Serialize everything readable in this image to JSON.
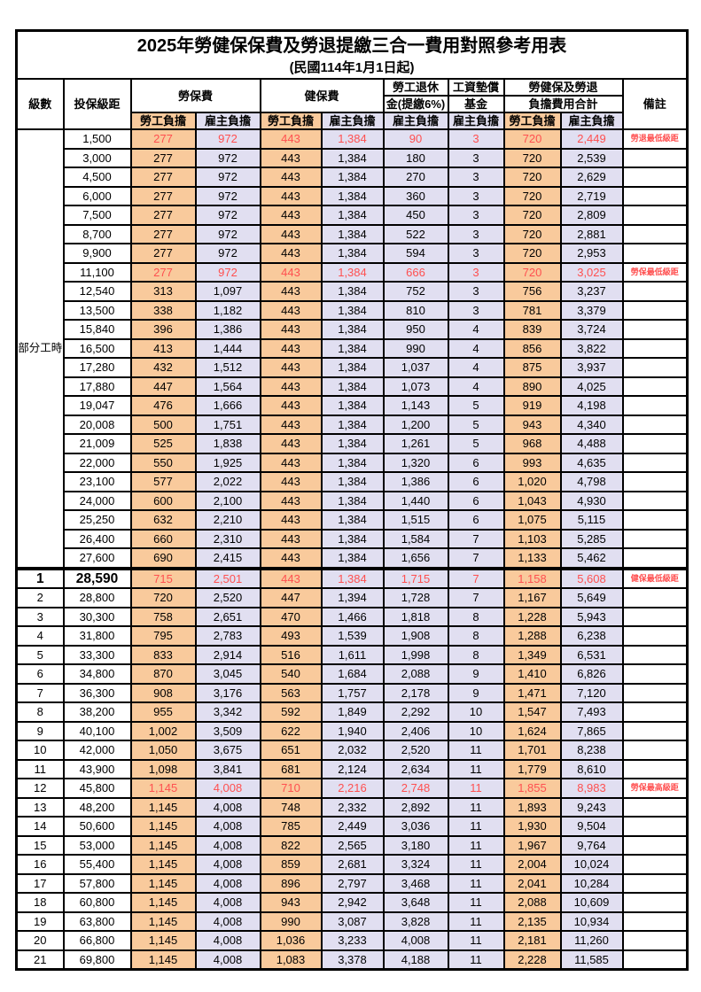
{
  "table": {
    "title": "2025年勞健保保費及勞退提繳三合一費用對照參考用表",
    "subtitle": "(民國114年1月1日起)",
    "header": {
      "level": "級數",
      "bracket": "投保級距",
      "labor": "勞保費",
      "health": "健保費",
      "pension_line1": "勞工退休",
      "pension_line2": "金(提繳6%)",
      "wage_fund_line1": "工資墊償",
      "wage_fund_line2": "基金",
      "total_line1": "勞健保及勞退",
      "total_line2": "負擔費用合計",
      "note": "備註",
      "employee": "勞工負擔",
      "employer": "雇主負擔"
    },
    "value_columns": [
      "勞保費-勞工負擔",
      "勞保費-雇主負擔",
      "健保費-勞工負擔",
      "健保費-雇主負擔",
      "勞工退休金-雇主負擔",
      "工資墊償基金-雇主負擔",
      "合計-勞工負擔",
      "合計-雇主負擔"
    ],
    "part_time_label": "部分工時",
    "colors": {
      "employee_bg": "#F9CA9C",
      "employer_bg": "#E1DFF1",
      "highlight_text": "#FF5050",
      "border": "#000000"
    },
    "rows": [
      {
        "level": "",
        "bracket": "1,500",
        "v": [
          "277",
          "972",
          "443",
          "1,384",
          "90",
          "3",
          "720",
          "2,449"
        ],
        "note": "勞退最低級距",
        "red": true
      },
      {
        "level": "",
        "bracket": "3,000",
        "v": [
          "277",
          "972",
          "443",
          "1,384",
          "180",
          "3",
          "720",
          "2,539"
        ],
        "note": ""
      },
      {
        "level": "",
        "bracket": "4,500",
        "v": [
          "277",
          "972",
          "443",
          "1,384",
          "270",
          "3",
          "720",
          "2,629"
        ],
        "note": ""
      },
      {
        "level": "",
        "bracket": "6,000",
        "v": [
          "277",
          "972",
          "443",
          "1,384",
          "360",
          "3",
          "720",
          "2,719"
        ],
        "note": ""
      },
      {
        "level": "",
        "bracket": "7,500",
        "v": [
          "277",
          "972",
          "443",
          "1,384",
          "450",
          "3",
          "720",
          "2,809"
        ],
        "note": ""
      },
      {
        "level": "",
        "bracket": "8,700",
        "v": [
          "277",
          "972",
          "443",
          "1,384",
          "522",
          "3",
          "720",
          "2,881"
        ],
        "note": ""
      },
      {
        "level": "",
        "bracket": "9,900",
        "v": [
          "277",
          "972",
          "443",
          "1,384",
          "594",
          "3",
          "720",
          "2,953"
        ],
        "note": ""
      },
      {
        "level": "",
        "bracket": "11,100",
        "v": [
          "277",
          "972",
          "443",
          "1,384",
          "666",
          "3",
          "720",
          "3,025"
        ],
        "note": "勞保最低級距",
        "red": true
      },
      {
        "level": "",
        "bracket": "12,540",
        "v": [
          "313",
          "1,097",
          "443",
          "1,384",
          "752",
          "3",
          "756",
          "3,237"
        ],
        "note": ""
      },
      {
        "level": "",
        "bracket": "13,500",
        "v": [
          "338",
          "1,182",
          "443",
          "1,384",
          "810",
          "3",
          "781",
          "3,379"
        ],
        "note": ""
      },
      {
        "level": "",
        "bracket": "15,840",
        "v": [
          "396",
          "1,386",
          "443",
          "1,384",
          "950",
          "4",
          "839",
          "3,724"
        ],
        "note": ""
      },
      {
        "level": "",
        "bracket": "16,500",
        "v": [
          "413",
          "1,444",
          "443",
          "1,384",
          "990",
          "4",
          "856",
          "3,822"
        ],
        "note": ""
      },
      {
        "level": "",
        "bracket": "17,280",
        "v": [
          "432",
          "1,512",
          "443",
          "1,384",
          "1,037",
          "4",
          "875",
          "3,937"
        ],
        "note": ""
      },
      {
        "level": "",
        "bracket": "17,880",
        "v": [
          "447",
          "1,564",
          "443",
          "1,384",
          "1,073",
          "4",
          "890",
          "4,025"
        ],
        "note": ""
      },
      {
        "level": "",
        "bracket": "19,047",
        "v": [
          "476",
          "1,666",
          "443",
          "1,384",
          "1,143",
          "5",
          "919",
          "4,198"
        ],
        "note": ""
      },
      {
        "level": "",
        "bracket": "20,008",
        "v": [
          "500",
          "1,751",
          "443",
          "1,384",
          "1,200",
          "5",
          "943",
          "4,340"
        ],
        "note": ""
      },
      {
        "level": "",
        "bracket": "21,009",
        "v": [
          "525",
          "1,838",
          "443",
          "1,384",
          "1,261",
          "5",
          "968",
          "4,488"
        ],
        "note": ""
      },
      {
        "level": "",
        "bracket": "22,000",
        "v": [
          "550",
          "1,925",
          "443",
          "1,384",
          "1,320",
          "6",
          "993",
          "4,635"
        ],
        "note": ""
      },
      {
        "level": "",
        "bracket": "23,100",
        "v": [
          "577",
          "2,022",
          "443",
          "1,384",
          "1,386",
          "6",
          "1,020",
          "4,798"
        ],
        "note": ""
      },
      {
        "level": "",
        "bracket": "24,000",
        "v": [
          "600",
          "2,100",
          "443",
          "1,384",
          "1,440",
          "6",
          "1,043",
          "4,930"
        ],
        "note": ""
      },
      {
        "level": "",
        "bracket": "25,250",
        "v": [
          "632",
          "2,210",
          "443",
          "1,384",
          "1,515",
          "6",
          "1,075",
          "5,115"
        ],
        "note": ""
      },
      {
        "level": "",
        "bracket": "26,400",
        "v": [
          "660",
          "2,310",
          "443",
          "1,384",
          "1,584",
          "7",
          "1,103",
          "5,285"
        ],
        "note": ""
      },
      {
        "level": "",
        "bracket": "27,600",
        "v": [
          "690",
          "2,415",
          "443",
          "1,384",
          "1,656",
          "7",
          "1,133",
          "5,462"
        ],
        "note": ""
      },
      {
        "level": "1",
        "bracket": "28,590",
        "v": [
          "715",
          "2,501",
          "443",
          "1,384",
          "1,715",
          "7",
          "1,158",
          "5,608"
        ],
        "note": "健保最低級距",
        "red": true,
        "big": true,
        "thick_top": true
      },
      {
        "level": "2",
        "bracket": "28,800",
        "v": [
          "720",
          "2,520",
          "447",
          "1,394",
          "1,728",
          "7",
          "1,167",
          "5,649"
        ],
        "note": ""
      },
      {
        "level": "3",
        "bracket": "30,300",
        "v": [
          "758",
          "2,651",
          "470",
          "1,466",
          "1,818",
          "8",
          "1,228",
          "5,943"
        ],
        "note": ""
      },
      {
        "level": "4",
        "bracket": "31,800",
        "v": [
          "795",
          "2,783",
          "493",
          "1,539",
          "1,908",
          "8",
          "1,288",
          "6,238"
        ],
        "note": ""
      },
      {
        "level": "5",
        "bracket": "33,300",
        "v": [
          "833",
          "2,914",
          "516",
          "1,611",
          "1,998",
          "8",
          "1,349",
          "6,531"
        ],
        "note": ""
      },
      {
        "level": "6",
        "bracket": "34,800",
        "v": [
          "870",
          "3,045",
          "540",
          "1,684",
          "2,088",
          "9",
          "1,410",
          "6,826"
        ],
        "note": ""
      },
      {
        "level": "7",
        "bracket": "36,300",
        "v": [
          "908",
          "3,176",
          "563",
          "1,757",
          "2,178",
          "9",
          "1,471",
          "7,120"
        ],
        "note": ""
      },
      {
        "level": "8",
        "bracket": "38,200",
        "v": [
          "955",
          "3,342",
          "592",
          "1,849",
          "2,292",
          "10",
          "1,547",
          "7,493"
        ],
        "note": ""
      },
      {
        "level": "9",
        "bracket": "40,100",
        "v": [
          "1,002",
          "3,509",
          "622",
          "1,940",
          "2,406",
          "10",
          "1,624",
          "7,865"
        ],
        "note": ""
      },
      {
        "level": "10",
        "bracket": "42,000",
        "v": [
          "1,050",
          "3,675",
          "651",
          "2,032",
          "2,520",
          "11",
          "1,701",
          "8,238"
        ],
        "note": ""
      },
      {
        "level": "11",
        "bracket": "43,900",
        "v": [
          "1,098",
          "3,841",
          "681",
          "2,124",
          "2,634",
          "11",
          "1,779",
          "8,610"
        ],
        "note": ""
      },
      {
        "level": "12",
        "bracket": "45,800",
        "v": [
          "1,145",
          "4,008",
          "710",
          "2,216",
          "2,748",
          "11",
          "1,855",
          "8,983"
        ],
        "note": "勞保最高級距",
        "red": true
      },
      {
        "level": "13",
        "bracket": "48,200",
        "v": [
          "1,145",
          "4,008",
          "748",
          "2,332",
          "2,892",
          "11",
          "1,893",
          "9,243"
        ],
        "note": ""
      },
      {
        "level": "14",
        "bracket": "50,600",
        "v": [
          "1,145",
          "4,008",
          "785",
          "2,449",
          "3,036",
          "11",
          "1,930",
          "9,504"
        ],
        "note": ""
      },
      {
        "level": "15",
        "bracket": "53,000",
        "v": [
          "1,145",
          "4,008",
          "822",
          "2,565",
          "3,180",
          "11",
          "1,967",
          "9,764"
        ],
        "note": ""
      },
      {
        "level": "16",
        "bracket": "55,400",
        "v": [
          "1,145",
          "4,008",
          "859",
          "2,681",
          "3,324",
          "11",
          "2,004",
          "10,024"
        ],
        "note": ""
      },
      {
        "level": "17",
        "bracket": "57,800",
        "v": [
          "1,145",
          "4,008",
          "896",
          "2,797",
          "3,468",
          "11",
          "2,041",
          "10,284"
        ],
        "note": ""
      },
      {
        "level": "18",
        "bracket": "60,800",
        "v": [
          "1,145",
          "4,008",
          "943",
          "2,942",
          "3,648",
          "11",
          "2,088",
          "10,609"
        ],
        "note": ""
      },
      {
        "level": "19",
        "bracket": "63,800",
        "v": [
          "1,145",
          "4,008",
          "990",
          "3,087",
          "3,828",
          "11",
          "2,135",
          "10,934"
        ],
        "note": ""
      },
      {
        "level": "20",
        "bracket": "66,800",
        "v": [
          "1,145",
          "4,008",
          "1,036",
          "3,233",
          "4,008",
          "11",
          "2,181",
          "11,260"
        ],
        "note": ""
      },
      {
        "level": "21",
        "bracket": "69,800",
        "v": [
          "1,145",
          "4,008",
          "1,083",
          "3,378",
          "4,188",
          "11",
          "2,228",
          "11,585"
        ],
        "note": ""
      }
    ]
  }
}
